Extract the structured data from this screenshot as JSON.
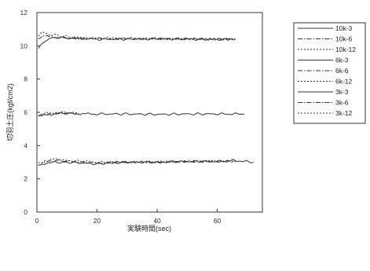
{
  "chart_data": {
    "type": "line",
    "xlabel": "実験時間(sec)",
    "ylabel": "切羽土圧(kgf/cm2)",
    "xlim": [
      0,
      75
    ],
    "ylim": [
      0,
      12
    ],
    "xticks": [
      "0",
      "20",
      "40",
      "60"
    ],
    "yticks": [
      "0",
      "2",
      "4",
      "6",
      "8",
      "10",
      "12"
    ],
    "grid": false,
    "legend_position": "right",
    "series": [
      {
        "name": "10k-3",
        "dash": "solid",
        "values": [
          [
            0.5,
            9.9
          ],
          [
            2,
            10.2
          ],
          [
            4,
            10.45
          ],
          [
            8,
            10.5
          ],
          [
            12,
            10.45
          ],
          [
            20,
            10.4
          ],
          [
            30,
            10.4
          ],
          [
            40,
            10.42
          ],
          [
            50,
            10.4
          ],
          [
            60,
            10.38
          ],
          [
            66,
            10.42
          ]
        ]
      },
      {
        "name": "10k-6",
        "dash": "dashdot",
        "values": [
          [
            0.5,
            10.4
          ],
          [
            2,
            10.6
          ],
          [
            4,
            10.55
          ],
          [
            8,
            10.5
          ],
          [
            12,
            10.45
          ],
          [
            20,
            10.45
          ],
          [
            30,
            10.43
          ],
          [
            40,
            10.43
          ],
          [
            50,
            10.42
          ],
          [
            60,
            10.4
          ],
          [
            66,
            10.4
          ]
        ]
      },
      {
        "name": "10k-12",
        "dash": "dotted",
        "values": [
          [
            0.5,
            10.6
          ],
          [
            2,
            10.8
          ],
          [
            4,
            10.7
          ],
          [
            8,
            10.6
          ],
          [
            12,
            10.5
          ],
          [
            20,
            10.45
          ],
          [
            30,
            10.45
          ],
          [
            40,
            10.43
          ],
          [
            50,
            10.42
          ],
          [
            60,
            10.4
          ],
          [
            66,
            10.4
          ]
        ]
      },
      {
        "name": "6k-3",
        "dash": "solid",
        "values": [
          [
            0.5,
            5.75
          ],
          [
            3,
            5.85
          ],
          [
            8,
            5.95
          ],
          [
            12,
            5.92
          ],
          [
            20,
            5.9
          ],
          [
            30,
            5.9
          ],
          [
            40,
            5.88
          ],
          [
            50,
            5.9
          ],
          [
            60,
            5.9
          ],
          [
            69,
            5.9
          ]
        ]
      },
      {
        "name": "6k-6",
        "dash": "dashdot",
        "values": [
          [
            0.5,
            5.8
          ],
          [
            3,
            5.9
          ],
          [
            8,
            5.95
          ],
          [
            12,
            5.95
          ],
          [
            14,
            5.9
          ]
        ]
      },
      {
        "name": "6k-12",
        "dash": "dotted",
        "values": [
          [
            0.5,
            5.8
          ],
          [
            3,
            5.95
          ],
          [
            8,
            6.0
          ],
          [
            12,
            5.95
          ],
          [
            14,
            5.9
          ]
        ]
      },
      {
        "name": "3k-3",
        "dash": "solid",
        "values": [
          [
            0.5,
            2.8
          ],
          [
            3,
            2.95
          ],
          [
            6,
            3.0
          ],
          [
            10,
            3.0
          ],
          [
            20,
            2.9
          ],
          [
            30,
            3.0
          ],
          [
            40,
            3.0
          ],
          [
            50,
            3.05
          ],
          [
            60,
            3.05
          ],
          [
            66,
            3.1
          ],
          [
            72,
            3.0
          ]
        ]
      },
      {
        "name": "3k-6",
        "dash": "dashdot",
        "values": [
          [
            0.5,
            2.85
          ],
          [
            3,
            3.0
          ],
          [
            6,
            3.1
          ],
          [
            10,
            3.05
          ],
          [
            20,
            2.95
          ],
          [
            30,
            3.0
          ],
          [
            40,
            3.0
          ],
          [
            50,
            3.05
          ],
          [
            60,
            3.05
          ],
          [
            66,
            3.05
          ]
        ]
      },
      {
        "name": "3k-12",
        "dash": "dotted",
        "values": [
          [
            0.5,
            2.9
          ],
          [
            3,
            3.1
          ],
          [
            6,
            3.2
          ],
          [
            10,
            3.1
          ],
          [
            20,
            3.0
          ],
          [
            30,
            3.0
          ],
          [
            40,
            3.02
          ],
          [
            50,
            3.05
          ],
          [
            60,
            3.05
          ],
          [
            66,
            3.05
          ]
        ]
      }
    ]
  }
}
